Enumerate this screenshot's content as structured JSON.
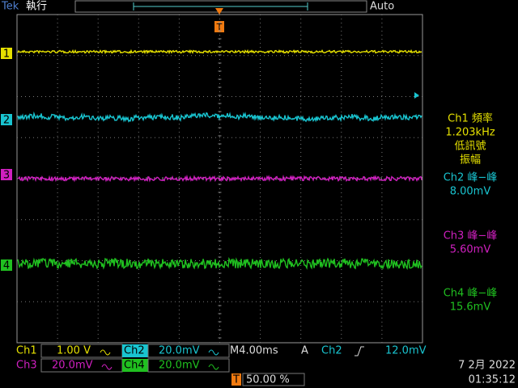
{
  "header": {
    "brand": "Tek",
    "state": "執行",
    "trigger_mode": "Auto",
    "trigger_marker": "T"
  },
  "channel_markers": [
    "1",
    "2",
    "3",
    "4"
  ],
  "measurements": [
    {
      "title": "Ch1 頻率",
      "value": "1.203kHz",
      "note": [
        "低訊號",
        "振幅"
      ]
    },
    {
      "title": "Ch2 峰−峰",
      "value": "8.00mV"
    },
    {
      "title": "Ch3 峰−峰",
      "value": "5.60mV"
    },
    {
      "title": "Ch4 峰−峰",
      "value": "15.6mV"
    }
  ],
  "footer": {
    "ch1": "Ch1",
    "ch1_scale": "1.00 V",
    "ch2": "Ch2",
    "ch2_scale": "20.0mV",
    "ch3": "Ch3",
    "ch3_scale": "20.0mV",
    "ch4": "Ch4",
    "ch4_scale": "20.0mV",
    "timebase": "M4.00ms",
    "trigger_label": "A",
    "trigger_source": "Ch2",
    "trigger_level": "12.0mV",
    "position_marker": "T",
    "position": "50.00 %",
    "date": "7 2月  2022",
    "time": "01:35:12"
  }
}
